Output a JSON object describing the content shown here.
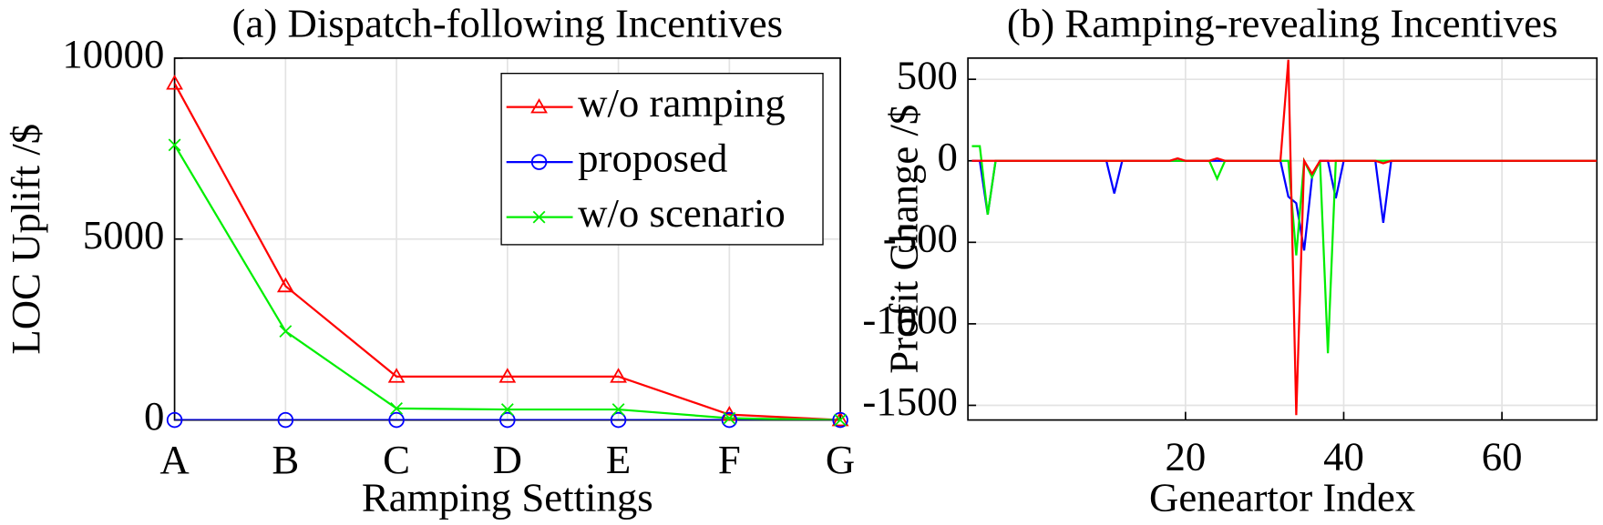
{
  "chart_data": [
    {
      "type": "line",
      "title": "(a) Dispatch-following Incentives",
      "x_label": "Ramping Settings",
      "y_label": "LOC Uplift /$",
      "categories": [
        "A",
        "B",
        "C",
        "D",
        "E",
        "F",
        "G"
      ],
      "series": [
        {
          "name": "w/o ramping",
          "color": "#ff0000",
          "marker": "triangle",
          "values": [
            9300,
            3700,
            1200,
            1200,
            1200,
            150,
            0
          ]
        },
        {
          "name": "proposed",
          "color": "#0000ff",
          "marker": "circle",
          "values": [
            0,
            0,
            0,
            0,
            0,
            0,
            0
          ]
        },
        {
          "name": "w/o scenario",
          "color": "#00ee00",
          "marker": "x",
          "values": [
            7600,
            2450,
            320,
            290,
            290,
            50,
            0
          ]
        }
      ],
      "ylim": [
        0,
        10000
      ],
      "yticks": [
        0,
        5000,
        10000
      ],
      "grid": true,
      "legend": "northeast"
    },
    {
      "type": "line",
      "title": "(b) Ramping-revealing Incentives",
      "x_label": "Geneartor Index",
      "y_label": "Profit Change /$",
      "x": [
        -7,
        -6,
        -5,
        -4,
        -3,
        -2,
        -1,
        0,
        1,
        2,
        3,
        4,
        5,
        6,
        7,
        8,
        9,
        10,
        11,
        12,
        13,
        14,
        15,
        16,
        17,
        18,
        19,
        20,
        21,
        22,
        23,
        24,
        25,
        26,
        27,
        28,
        29,
        30,
        31,
        32,
        33,
        34,
        35,
        36,
        37,
        38,
        39,
        40,
        41,
        42,
        43,
        44,
        45,
        46,
        47,
        48,
        49,
        50,
        51,
        52,
        53,
        54,
        55,
        56,
        57,
        58,
        59,
        60,
        61,
        62,
        63,
        64,
        65,
        66,
        67,
        68,
        69,
        70,
        71,
        72
      ],
      "series": [
        {
          "color": "#0000ff",
          "values": [
            0,
            0,
            -330,
            0,
            0,
            0,
            0,
            0,
            0,
            0,
            0,
            0,
            0,
            0,
            0,
            0,
            0,
            0,
            -200,
            0,
            0,
            0,
            0,
            0,
            0,
            0,
            0,
            0,
            0,
            0,
            0,
            0,
            0,
            0,
            0,
            0,
            0,
            0,
            0,
            0,
            -220,
            -260,
            -550,
            -100,
            0,
            0,
            -230,
            0,
            0,
            0,
            0,
            0,
            -380,
            0,
            0,
            0,
            0,
            0,
            0,
            0,
            0,
            0,
            0,
            0,
            0,
            0,
            0,
            0,
            0,
            0,
            0,
            0,
            0,
            0,
            0,
            0,
            0,
            0,
            0,
            0
          ]
        },
        {
          "color": "#00ee00",
          "values": [
            90,
            90,
            -330,
            0,
            0,
            0,
            0,
            0,
            0,
            0,
            0,
            0,
            0,
            0,
            0,
            0,
            0,
            0,
            0,
            0,
            0,
            0,
            0,
            0,
            0,
            0,
            0,
            0,
            0,
            0,
            0,
            -110,
            0,
            0,
            0,
            0,
            0,
            0,
            0,
            0,
            0,
            -580,
            0,
            -100,
            0,
            -1180,
            0,
            0,
            0,
            0,
            0,
            0,
            0,
            0,
            0,
            0,
            0,
            0,
            0,
            0,
            0,
            0,
            0,
            0,
            0,
            0,
            0,
            0,
            0,
            0,
            0,
            0,
            0,
            0,
            0,
            0,
            0,
            0,
            0,
            0
          ]
        },
        {
          "color": "#ff0000",
          "values": [
            0,
            0,
            0,
            0,
            0,
            0,
            0,
            0,
            0,
            0,
            0,
            0,
            0,
            0,
            0,
            0,
            0,
            0,
            0,
            0,
            0,
            0,
            0,
            0,
            0,
            0,
            15,
            0,
            0,
            0,
            0,
            15,
            0,
            0,
            0,
            0,
            0,
            0,
            0,
            0,
            620,
            -1560,
            0,
            -80,
            0,
            0,
            0,
            0,
            0,
            0,
            0,
            0,
            -15,
            0,
            0,
            0,
            0,
            0,
            0,
            0,
            0,
            0,
            0,
            0,
            0,
            0,
            0,
            0,
            0,
            0,
            0,
            0,
            0,
            0,
            0,
            0,
            0,
            0,
            0,
            0
          ]
        }
      ],
      "xlim": [
        -7.5,
        72
      ],
      "xticks": [
        20,
        40,
        60
      ],
      "ylim": [
        -1590,
        630
      ],
      "yticks": [
        -1500,
        -1000,
        -500,
        0,
        500
      ],
      "grid": true
    }
  ]
}
